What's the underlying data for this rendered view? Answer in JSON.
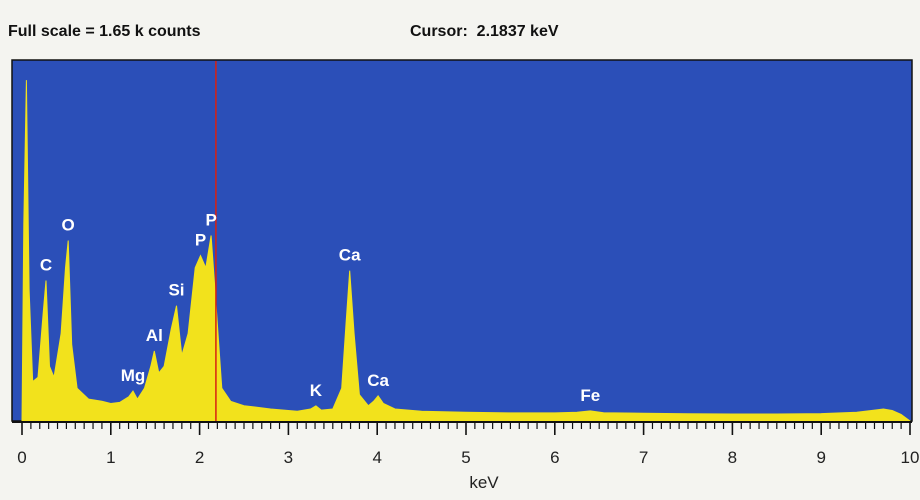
{
  "chart_data": {
    "type": "area",
    "full_scale_text": "Full scale = 1.65 k counts",
    "cursor_text": "Cursor:  2.1837 keV",
    "cursor": 2.1837,
    "x_label": "keV",
    "xlim": [
      0,
      10
    ],
    "xticks": [
      0,
      1,
      2,
      3,
      4,
      5,
      6,
      7,
      8,
      9,
      10
    ],
    "ylim": [
      0,
      1650
    ],
    "background": "#2b4fb8",
    "color": "#f2e21c",
    "cursor_color": "#d82010",
    "x": [
      0,
      0.02,
      0.05,
      0.08,
      0.12,
      0.18,
      0.24,
      0.27,
      0.31,
      0.36,
      0.44,
      0.49,
      0.52,
      0.56,
      0.62,
      0.75,
      0.9,
      1.0,
      1.1,
      1.2,
      1.25,
      1.3,
      1.38,
      1.45,
      1.49,
      1.54,
      1.6,
      1.68,
      1.74,
      1.8,
      1.87,
      1.95,
      2.01,
      2.07,
      2.13,
      2.19,
      2.25,
      2.35,
      2.5,
      2.8,
      3.1,
      3.25,
      3.31,
      3.37,
      3.5,
      3.6,
      3.65,
      3.69,
      3.74,
      3.8,
      3.9,
      3.96,
      4.01,
      4.07,
      4.2,
      4.5,
      5.0,
      5.5,
      6.0,
      6.25,
      6.4,
      6.55,
      7.0,
      7.5,
      8.0,
      8.5,
      9.0,
      9.4,
      9.6,
      9.7,
      9.8,
      9.9,
      10
    ],
    "values": [
      0,
      900,
      1558,
      600,
      180,
      200,
      500,
      642,
      250,
      200,
      400,
      700,
      825,
      350,
      150,
      100,
      90,
      80,
      85,
      110,
      137,
      100,
      150,
      250,
      320,
      220,
      250,
      420,
      527,
      300,
      400,
      700,
      756,
      700,
      848,
      500,
      150,
      90,
      70,
      55,
      45,
      55,
      69,
      50,
      55,
      150,
      450,
      687,
      400,
      120,
      70,
      90,
      115,
      80,
      55,
      45,
      40,
      37,
      37,
      40,
      46,
      38,
      35,
      33,
      32,
      32,
      34,
      40,
      50,
      55,
      48,
      30,
      0
    ],
    "peaks": [
      {
        "label": "C",
        "x": 0.27
      },
      {
        "label": "O",
        "x": 0.52
      },
      {
        "label": "Mg",
        "x": 1.25
      },
      {
        "label": "Al",
        "x": 1.49
      },
      {
        "label": "Si",
        "x": 1.74
      },
      {
        "label": "P",
        "x": 2.01
      },
      {
        "label": "P",
        "x": 2.13
      },
      {
        "label": "K",
        "x": 3.31
      },
      {
        "label": "Ca",
        "x": 3.69
      },
      {
        "label": "Ca",
        "x": 4.01
      },
      {
        "label": "Fe",
        "x": 6.4
      }
    ]
  }
}
